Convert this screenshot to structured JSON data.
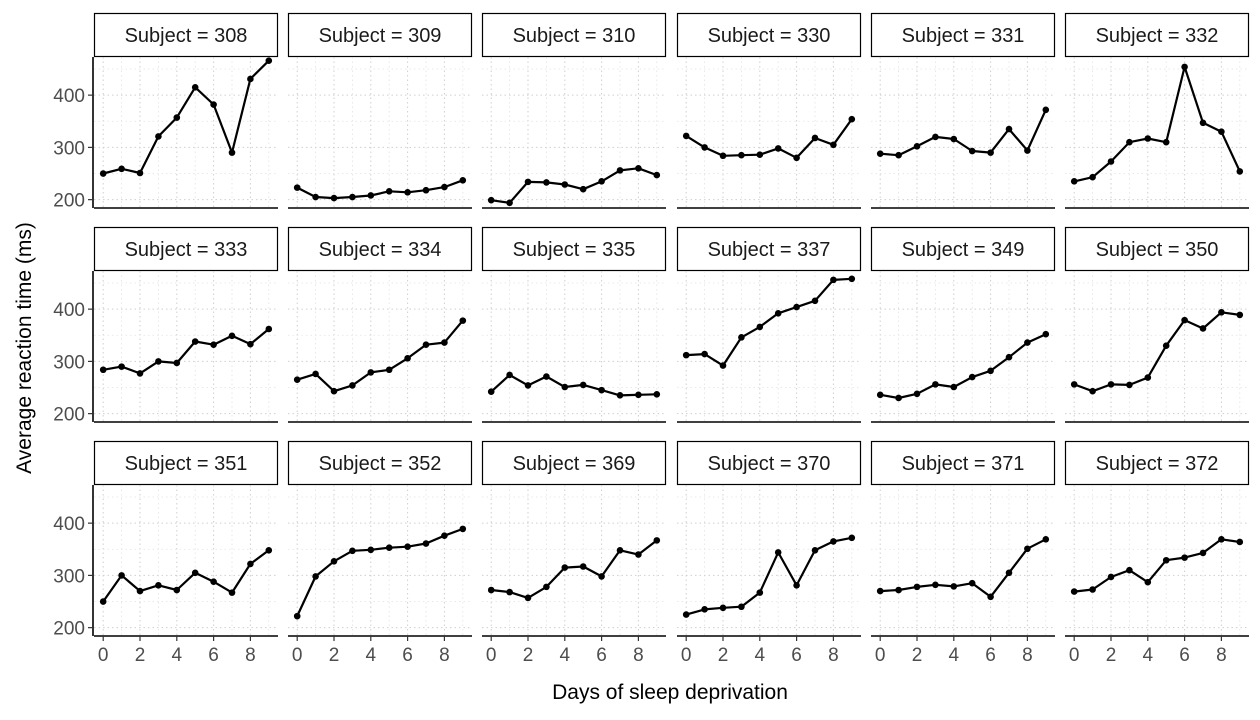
{
  "chart_data": {
    "type": "line",
    "facet_type": "facet_wrap",
    "xlabel": "Days of sleep deprivation",
    "ylabel": "Average reaction time (ms)",
    "x_ticks": [
      0,
      2,
      4,
      6,
      8
    ],
    "y_ticks": [
      200,
      300,
      400
    ],
    "xlim": [
      -0.5,
      9.5
    ],
    "ylim": [
      184,
      473
    ],
    "grid": "dotted",
    "line_color": "#000000",
    "strip_label_prefix": "Subject = ",
    "x": [
      0,
      1,
      2,
      3,
      4,
      5,
      6,
      7,
      8,
      9
    ],
    "panels": [
      {
        "subject": "308",
        "values": [
          250,
          259,
          251,
          321,
          357,
          415,
          382,
          290,
          431,
          466
        ]
      },
      {
        "subject": "309",
        "values": [
          223,
          205,
          203,
          205,
          208,
          216,
          214,
          218,
          224,
          237
        ]
      },
      {
        "subject": "310",
        "values": [
          199,
          194,
          234,
          233,
          229,
          220,
          235,
          256,
          260,
          247
        ]
      },
      {
        "subject": "330",
        "values": [
          322,
          300,
          284,
          285,
          286,
          298,
          280,
          318,
          305,
          354
        ]
      },
      {
        "subject": "331",
        "values": [
          288,
          285,
          302,
          320,
          316,
          293,
          290,
          335,
          294,
          372
        ]
      },
      {
        "subject": "332",
        "values": [
          235,
          243,
          273,
          310,
          317,
          310,
          454,
          347,
          330,
          254
        ]
      },
      {
        "subject": "333",
        "values": [
          284,
          290,
          277,
          300,
          297,
          338,
          332,
          349,
          333,
          362
        ]
      },
      {
        "subject": "334",
        "values": [
          265,
          276,
          243,
          254,
          279,
          284,
          306,
          332,
          336,
          378
        ]
      },
      {
        "subject": "335",
        "values": [
          242,
          274,
          254,
          271,
          251,
          255,
          245,
          235,
          236,
          237
        ]
      },
      {
        "subject": "337",
        "values": [
          312,
          314,
          292,
          346,
          366,
          392,
          404,
          416,
          456,
          458
        ]
      },
      {
        "subject": "349",
        "values": [
          236,
          230,
          238,
          256,
          251,
          270,
          282,
          308,
          336,
          352
        ]
      },
      {
        "subject": "350",
        "values": [
          256,
          243,
          256,
          255,
          269,
          330,
          379,
          363,
          394,
          389
        ]
      },
      {
        "subject": "351",
        "values": [
          250,
          300,
          270,
          281,
          272,
          305,
          288,
          267,
          322,
          348
        ]
      },
      {
        "subject": "352",
        "values": [
          222,
          298,
          327,
          347,
          349,
          353,
          355,
          361,
          376,
          389
        ]
      },
      {
        "subject": "369",
        "values": [
          272,
          268,
          257,
          278,
          315,
          317,
          298,
          348,
          340,
          367
        ]
      },
      {
        "subject": "370",
        "values": [
          225,
          235,
          238,
          240,
          267,
          344,
          281,
          348,
          365,
          372
        ]
      },
      {
        "subject": "371",
        "values": [
          270,
          272,
          278,
          282,
          279,
          285,
          259,
          305,
          351,
          369
        ]
      },
      {
        "subject": "372",
        "values": [
          269,
          273,
          297,
          310,
          287,
          329,
          334,
          343,
          369,
          364
        ]
      }
    ]
  }
}
